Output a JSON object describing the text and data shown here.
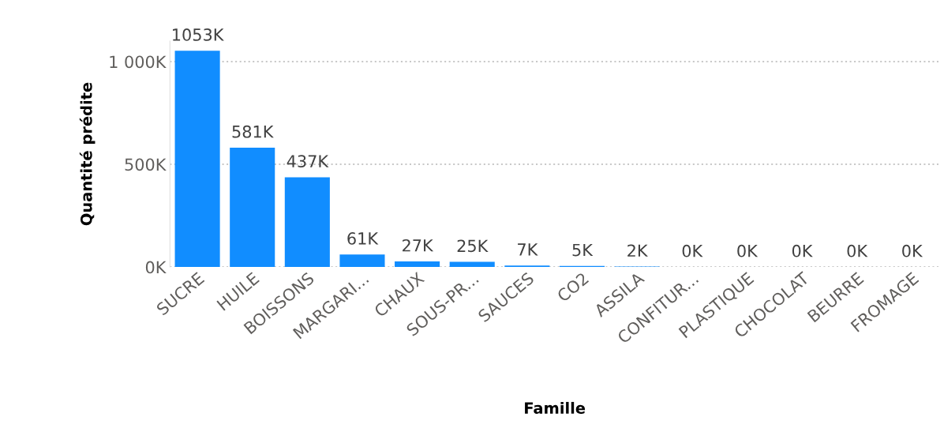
{
  "chart_data": {
    "type": "bar",
    "xlabel": "Famille",
    "ylabel": "Quantité prédite",
    "categories": [
      "SUCRE",
      "HUILE",
      "BOISSONS",
      "MARGARI...",
      "CHAUX",
      "SOUS-PR...",
      "SAUCES",
      "CO2",
      "ASSILA",
      "CONFITUR...",
      "PLASTIQUE",
      "CHOCOLAT",
      "BEURRE",
      "FROMAGE"
    ],
    "values": [
      1053000,
      581000,
      437000,
      61000,
      27000,
      25000,
      7000,
      5000,
      2000,
      300,
      300,
      300,
      300,
      300
    ],
    "value_labels": [
      "1053K",
      "581K",
      "437K",
      "61K",
      "27K",
      "25K",
      "7K",
      "5K",
      "2K",
      "0K",
      "0K",
      "0K",
      "0K",
      "0K"
    ],
    "color": "#118dff",
    "ylim": [
      0,
      1100000
    ],
    "yticks": [
      {
        "value": 0,
        "label": "0K"
      },
      {
        "value": 500000,
        "label": "500K"
      },
      {
        "value": 1000000,
        "label": "1 000K"
      }
    ],
    "grid": "y"
  }
}
